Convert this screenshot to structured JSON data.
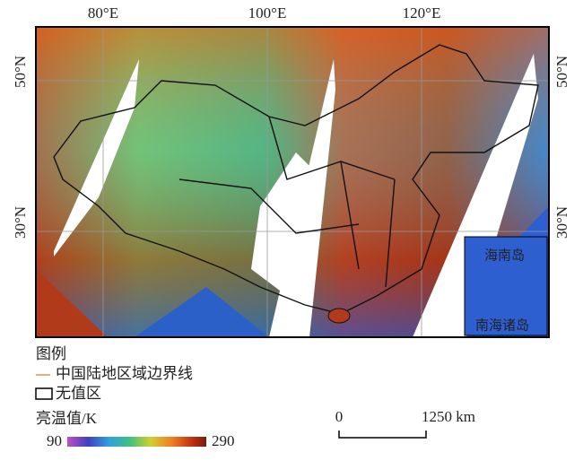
{
  "map": {
    "longitude_labels": [
      "80°E",
      "100°E",
      "120°E"
    ],
    "latitude_labels": [
      "50°N",
      "30°N"
    ],
    "inset_labels": [
      "海南岛",
      "南海诸岛"
    ],
    "legend": {
      "title": "图例",
      "boundary": "中国陆地区域边界线",
      "no_value": "无值区",
      "colorbar_title": "亮温值/K",
      "colorbar_min": "90",
      "colorbar_max": "290"
    },
    "scalebar": {
      "start": "0",
      "end": "1250 km"
    }
  }
}
